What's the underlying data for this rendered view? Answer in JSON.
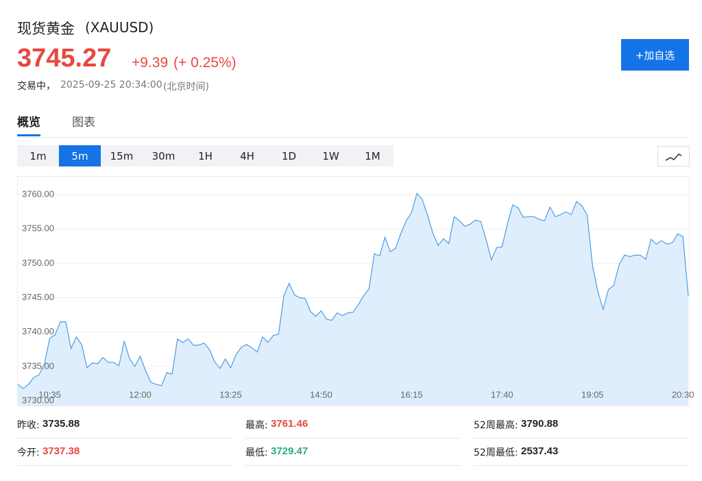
{
  "header": {
    "name": "现货黄金",
    "code": "(XAUUSD)",
    "price": "3745.27",
    "change": "+9.39",
    "change_pct": "(+ 0.25%)",
    "status": "交易中，",
    "time": "2025-09-25 20:34:00",
    "timezone": "(北京时间)",
    "button": "+加自选"
  },
  "tabs": [
    "概览",
    "图表"
  ],
  "intervals": [
    "1m",
    "5m",
    "15m",
    "30m",
    "1H",
    "4H",
    "1D",
    "1W",
    "1M"
  ],
  "selected_interval": "5m",
  "chart_data": {
    "type": "area",
    "color": "#4d9be6",
    "fill": "#dfeefc",
    "grid": true,
    "x": [
      "10:05",
      "10:10",
      "10:15",
      "10:20",
      "10:25",
      "10:30",
      "10:35",
      "10:40",
      "10:45",
      "10:50",
      "10:55",
      "11:00",
      "11:05",
      "11:10",
      "11:15",
      "11:20",
      "11:25",
      "11:30",
      "11:35",
      "11:40",
      "11:45",
      "11:50",
      "11:55",
      "12:00",
      "12:05",
      "12:10",
      "12:15",
      "12:20",
      "12:25",
      "12:30",
      "12:35",
      "12:40",
      "12:45",
      "12:50",
      "12:55",
      "13:00",
      "13:05",
      "13:10",
      "13:15",
      "13:20",
      "13:25",
      "13:30",
      "13:35",
      "13:40",
      "13:45",
      "13:50",
      "13:55",
      "14:00",
      "14:05",
      "14:10",
      "14:15",
      "14:20",
      "14:25",
      "14:30",
      "14:35",
      "14:40",
      "14:45",
      "14:50",
      "14:55",
      "15:00",
      "15:05",
      "15:10",
      "15:15",
      "15:20",
      "15:25",
      "15:30",
      "15:35",
      "15:40",
      "15:45",
      "15:50",
      "15:55",
      "16:00",
      "16:05",
      "16:10",
      "16:15",
      "16:20",
      "16:25",
      "16:30",
      "16:35",
      "16:40",
      "16:45",
      "16:50",
      "16:55",
      "17:00",
      "17:05",
      "17:10",
      "17:15",
      "17:20",
      "17:25",
      "17:30",
      "17:35",
      "17:40",
      "17:45",
      "17:50",
      "17:55",
      "18:00",
      "18:05",
      "18:10",
      "18:15",
      "18:20",
      "18:25",
      "18:30",
      "18:35",
      "18:40",
      "18:45",
      "18:50",
      "18:55",
      "19:00",
      "19:05",
      "19:10",
      "19:15",
      "19:20",
      "19:25",
      "19:30",
      "19:35",
      "19:40",
      "19:45",
      "19:50",
      "19:55",
      "20:00",
      "20:05",
      "20:10",
      "20:15",
      "20:20",
      "20:25",
      "20:30",
      "20:35"
    ],
    "values": [
      3732.4,
      3731.8,
      3732.4,
      3733.4,
      3733.8,
      3735.4,
      3739.1,
      3739.6,
      3741.5,
      3741.5,
      3737.6,
      3739.3,
      3738.2,
      3734.8,
      3735.5,
      3735.4,
      3736.3,
      3735.6,
      3735.6,
      3735.1,
      3738.7,
      3736.1,
      3735.0,
      3736.5,
      3734.4,
      3732.7,
      3732.4,
      3732.2,
      3734.1,
      3733.9,
      3739.0,
      3738.5,
      3739.0,
      3738.1,
      3738.1,
      3738.4,
      3737.5,
      3735.7,
      3734.7,
      3736.1,
      3734.8,
      3736.7,
      3737.8,
      3738.2,
      3737.7,
      3737.1,
      3739.3,
      3738.5,
      3739.5,
      3739.7,
      3745.3,
      3747.1,
      3745.4,
      3745.0,
      3744.9,
      3743.0,
      3742.3,
      3743.1,
      3741.9,
      3741.7,
      3742.8,
      3742.4,
      3742.8,
      3742.9,
      3744.0,
      3745.3,
      3746.3,
      3751.4,
      3751.1,
      3753.8,
      3751.7,
      3752.2,
      3754.4,
      3756.2,
      3757.4,
      3760.2,
      3759.3,
      3757.0,
      3754.4,
      3752.6,
      3753.6,
      3752.9,
      3756.8,
      3756.2,
      3755.4,
      3755.7,
      3756.3,
      3756.1,
      3753.5,
      3750.5,
      3752.3,
      3752.4,
      3755.7,
      3758.5,
      3758.1,
      3756.7,
      3756.8,
      3756.8,
      3756.4,
      3756.2,
      3758.2,
      3756.8,
      3757.1,
      3757.5,
      3757.1,
      3759.0,
      3758.4,
      3757.0,
      3749.7,
      3745.9,
      3743.3,
      3746.2,
      3746.8,
      3749.8,
      3751.2,
      3751.0,
      3751.2,
      3751.2,
      3750.6,
      3753.5,
      3752.8,
      3753.3,
      3752.8,
      3753.0,
      3754.3,
      3753.9,
      3745.27
    ],
    "xlim": [
      "10:05",
      "20:35"
    ],
    "xticks": [
      "10:35",
      "12:00",
      "13:25",
      "14:50",
      "16:15",
      "17:40",
      "19:05",
      "20:30"
    ],
    "ylim": [
      3729.3,
      3762.6
    ],
    "yticks": [
      {
        "value": 3730,
        "label": "3730.00"
      },
      {
        "value": 3735,
        "label": "3735.00"
      },
      {
        "value": 3740,
        "label": "3740.00"
      },
      {
        "value": 3745,
        "label": "3745.00"
      },
      {
        "value": 3750,
        "label": "3750.00"
      },
      {
        "value": 3755,
        "label": "3755.00"
      },
      {
        "value": 3760,
        "label": "3760.00"
      }
    ]
  },
  "stats": [
    {
      "label": "昨收:",
      "value": "3735.88",
      "color": "#222222"
    },
    {
      "label": "最高:",
      "value": "3761.46",
      "color": "#e8473f"
    },
    {
      "label": "52周最高:",
      "value": "3790.88",
      "color": "#222222"
    },
    {
      "label": "今开:",
      "value": "3737.38",
      "color": "#e8473f"
    },
    {
      "label": "最低:",
      "value": "3729.47",
      "color": "#2bae7b"
    },
    {
      "label": "52周最低:",
      "value": "2537.43",
      "color": "#222222"
    }
  ]
}
